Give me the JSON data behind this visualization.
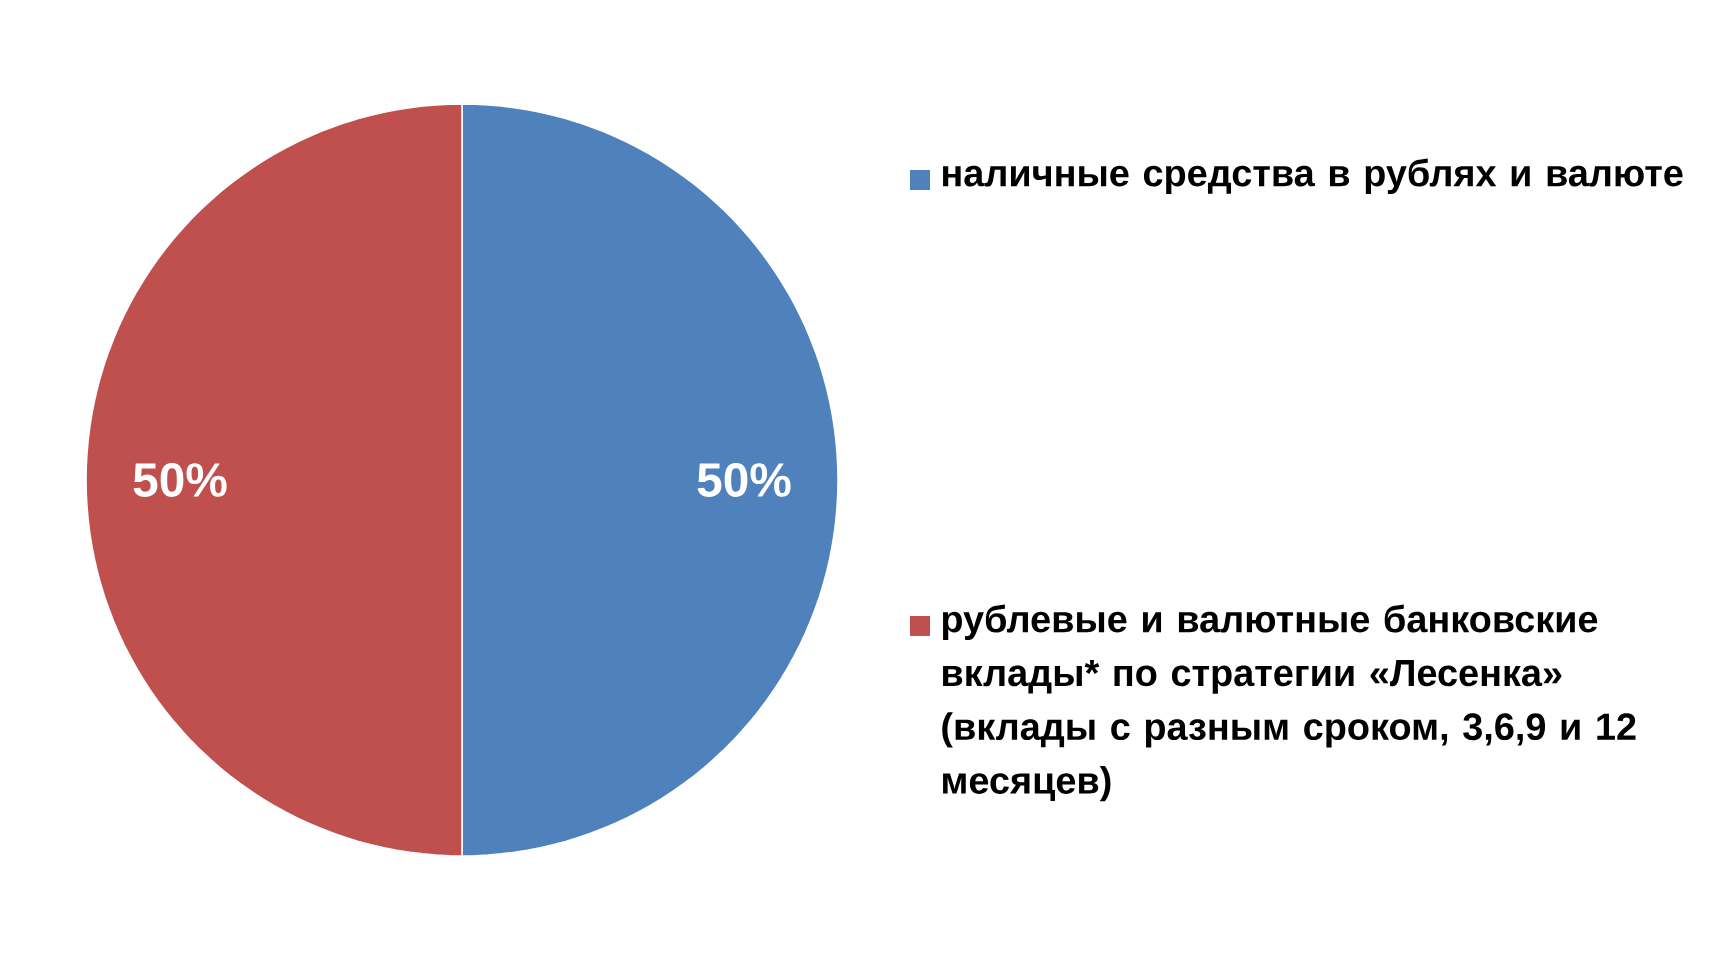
{
  "chart_data": {
    "type": "pie",
    "categories": [
      "наличные средства в рублях и валюте",
      "рублевые и валютные банковские вклады* по стратегии «Лесенка» (вклады с разным сроком, 3,6,9 и 12 месяцев)"
    ],
    "values": [
      50,
      50
    ],
    "colors": [
      "#4f81bd",
      "#c0504d"
    ],
    "value_labels": [
      "50%",
      "50%"
    ],
    "legend": "right"
  }
}
